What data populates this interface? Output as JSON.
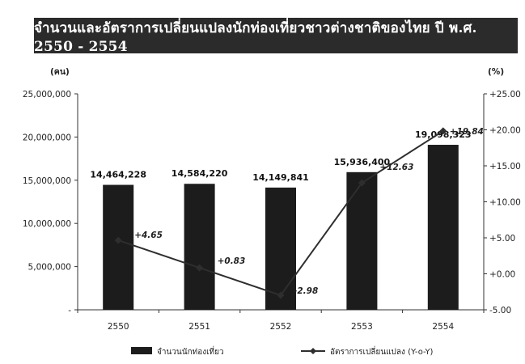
{
  "chart_data": {
    "type": "bar",
    "title": "จำนวนและอัตราการเปลี่ยนแปลงนักท่องเที่ยวชาวต่างชาติของไทย ปี พ.ศ. 2550 - 2554",
    "categories": [
      "2550",
      "2551",
      "2552",
      "2553",
      "2554"
    ],
    "series": [
      {
        "name": "จำนวนนักท่องเที่ยว",
        "type": "bar",
        "axis": "left",
        "values": [
          14464228,
          14584220,
          14149841,
          15936400,
          19098323
        ],
        "labels": [
          "14,464,228",
          "14,584,220",
          "14,149,841",
          "15,936,400",
          "19,098,323"
        ]
      },
      {
        "name": "อัตราการเปลี่ยนแปลง (Y-o-Y)",
        "type": "line",
        "axis": "right",
        "values": [
          4.65,
          0.83,
          -2.98,
          12.63,
          19.84
        ],
        "labels": [
          "+4.65",
          "+0.83",
          "-2.98",
          "+12.63",
          "+19.84"
        ]
      }
    ],
    "left_axis": {
      "unit": "(คน)",
      "ylim": [
        0,
        25000000
      ],
      "ticks": [
        0,
        5000000,
        10000000,
        15000000,
        20000000,
        25000000
      ],
      "tick_labels": [
        "-",
        "5,000,000",
        "10,000,000",
        "15,000,000",
        "20,000,000",
        "25,000,000"
      ]
    },
    "right_axis": {
      "unit": "(%)",
      "ylim": [
        -5,
        25
      ],
      "ticks": [
        -5,
        0,
        5,
        10,
        15,
        20,
        25
      ],
      "tick_labels": [
        "-5.00",
        "+0.00",
        "+5.00",
        "+10.00",
        "+15.00",
        "+20.00",
        "+25.00"
      ]
    },
    "colors": {
      "bar": "#1c1c1c",
      "line": "#2e2e2e",
      "title_bg": "#2b2b2b"
    },
    "legend_position": "bottom"
  }
}
